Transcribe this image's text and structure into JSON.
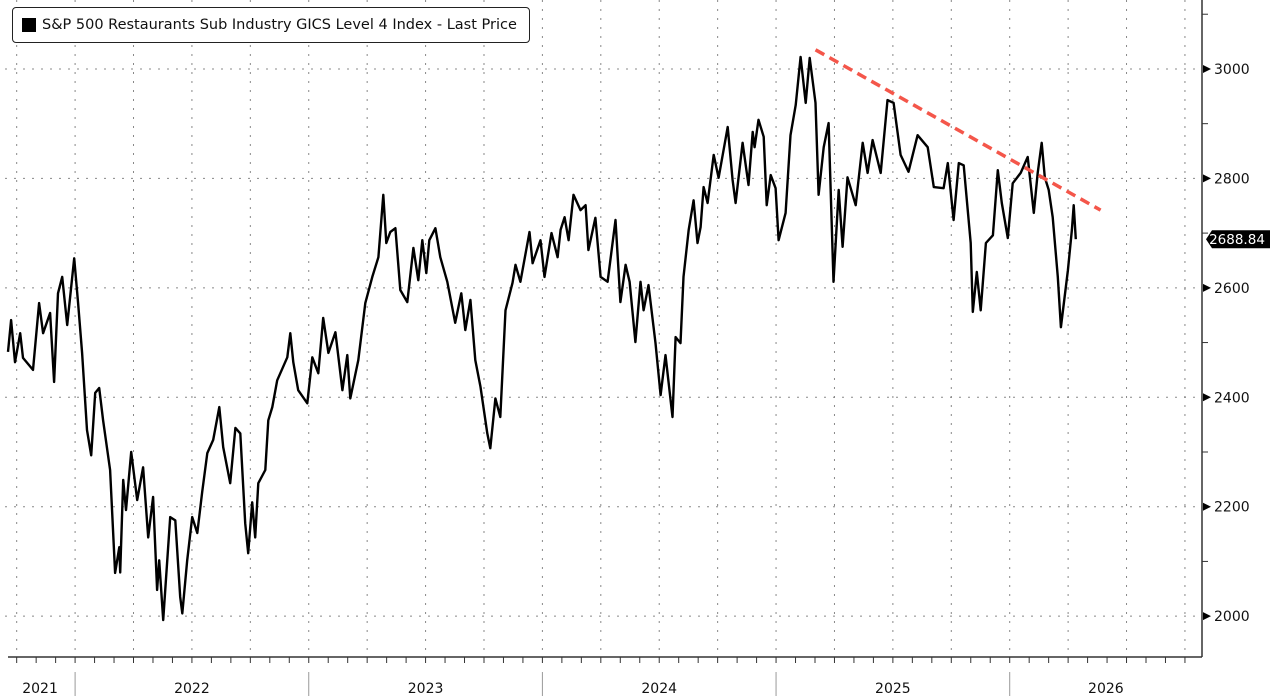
{
  "chart_data": {
    "type": "line",
    "title": "S&P 500 Restaurants Sub Industry GICS Level 4 Index - Last Price",
    "legend": [
      "S&P 500 Restaurants Sub Industry GICS Level 4 Index - Last Price"
    ],
    "legend_position": "top-left",
    "xlabel": "",
    "ylabel": "",
    "x_unit": "decimal year",
    "xlim": [
      2021.7,
      2026.823
    ],
    "ylim": [
      1929,
      3126
    ],
    "grid": true,
    "y_ticks": [
      2000,
      2200,
      2400,
      2600,
      2800,
      3000
    ],
    "y_tick_labels": [
      "2000",
      "2200",
      "2400",
      "2600",
      "2800",
      "3000"
    ],
    "x_tick_labels": [
      {
        "label": "2021",
        "from": 2021.7,
        "to": 2022.0
      },
      {
        "label": "2022",
        "from": 2022.0,
        "to": 2023.0
      },
      {
        "label": "2023",
        "from": 2023.0,
        "to": 2024.0
      },
      {
        "label": "2024",
        "from": 2024.0,
        "to": 2025.0
      },
      {
        "label": "2025",
        "from": 2025.0,
        "to": 2026.0
      },
      {
        "label": "2026",
        "from": 2026.0,
        "to": 2026.823
      }
    ],
    "last_price_label": "2688.84",
    "last_price": 2688.84,
    "series": [
      {
        "name": "S&P 500 Restaurants Sub Industry GICS Level 4 Index - Last Price",
        "color": "#000000",
        "points": [
          [
            2021.713,
            2483
          ],
          [
            2021.726,
            2541
          ],
          [
            2021.743,
            2464
          ],
          [
            2021.765,
            2517
          ],
          [
            2021.777,
            2472
          ],
          [
            2021.82,
            2450
          ],
          [
            2021.846,
            2572
          ],
          [
            2021.863,
            2517
          ],
          [
            2021.893,
            2554
          ],
          [
            2021.91,
            2428
          ],
          [
            2021.927,
            2590
          ],
          [
            2021.945,
            2620
          ],
          [
            2021.966,
            2532
          ],
          [
            2021.996,
            2654
          ],
          [
            2022.013,
            2572
          ],
          [
            2022.03,
            2481
          ],
          [
            2022.051,
            2340
          ],
          [
            2022.069,
            2294
          ],
          [
            2022.086,
            2408
          ],
          [
            2022.103,
            2417
          ],
          [
            2022.12,
            2358
          ],
          [
            2022.15,
            2267
          ],
          [
            2022.171,
            2079
          ],
          [
            2022.189,
            2126
          ],
          [
            2022.193,
            2080
          ],
          [
            2022.206,
            2249
          ],
          [
            2022.218,
            2194
          ],
          [
            2022.24,
            2300
          ],
          [
            2022.266,
            2212
          ],
          [
            2022.291,
            2272
          ],
          [
            2022.313,
            2144
          ],
          [
            2022.334,
            2218
          ],
          [
            2022.351,
            2048
          ],
          [
            2022.36,
            2102
          ],
          [
            2022.377,
            1993
          ],
          [
            2022.407,
            2181
          ],
          [
            2022.429,
            2175
          ],
          [
            2022.45,
            2035
          ],
          [
            2022.459,
            2005
          ],
          [
            2022.48,
            2102
          ],
          [
            2022.501,
            2181
          ],
          [
            2022.523,
            2152
          ],
          [
            2022.544,
            2227
          ],
          [
            2022.566,
            2298
          ],
          [
            2022.591,
            2322
          ],
          [
            2022.617,
            2382
          ],
          [
            2022.634,
            2309
          ],
          [
            2022.664,
            2243
          ],
          [
            2022.686,
            2344
          ],
          [
            2022.707,
            2334
          ],
          [
            2022.728,
            2170
          ],
          [
            2022.741,
            2115
          ],
          [
            2022.758,
            2208
          ],
          [
            2022.771,
            2144
          ],
          [
            2022.784,
            2243
          ],
          [
            2022.814,
            2267
          ],
          [
            2022.827,
            2358
          ],
          [
            2022.844,
            2382
          ],
          [
            2022.865,
            2431
          ],
          [
            2022.908,
            2473
          ],
          [
            2022.921,
            2517
          ],
          [
            2022.934,
            2464
          ],
          [
            2022.955,
            2413
          ],
          [
            2022.994,
            2389
          ],
          [
            2023.015,
            2473
          ],
          [
            2023.041,
            2444
          ],
          [
            2023.062,
            2545
          ],
          [
            2023.084,
            2481
          ],
          [
            2023.114,
            2519
          ],
          [
            2023.144,
            2413
          ],
          [
            2023.165,
            2477
          ],
          [
            2023.178,
            2398
          ],
          [
            2023.212,
            2468
          ],
          [
            2023.242,
            2572
          ],
          [
            2023.272,
            2620
          ],
          [
            2023.298,
            2656
          ],
          [
            2023.319,
            2770
          ],
          [
            2023.332,
            2682
          ],
          [
            2023.349,
            2702
          ],
          [
            2023.371,
            2709
          ],
          [
            2023.392,
            2596
          ],
          [
            2023.422,
            2574
          ],
          [
            2023.448,
            2673
          ],
          [
            2023.469,
            2614
          ],
          [
            2023.486,
            2687
          ],
          [
            2023.503,
            2627
          ],
          [
            2023.516,
            2687
          ],
          [
            2023.542,
            2709
          ],
          [
            2023.563,
            2656
          ],
          [
            2023.593,
            2611
          ],
          [
            2023.627,
            2536
          ],
          [
            2023.653,
            2590
          ],
          [
            2023.67,
            2523
          ],
          [
            2023.692,
            2578
          ],
          [
            2023.713,
            2468
          ],
          [
            2023.735,
            2419
          ],
          [
            2023.764,
            2334
          ],
          [
            2023.777,
            2307
          ],
          [
            2023.799,
            2398
          ],
          [
            2023.82,
            2364
          ],
          [
            2023.842,
            2559
          ],
          [
            2023.872,
            2609
          ],
          [
            2023.885,
            2642
          ],
          [
            2023.906,
            2611
          ],
          [
            2023.945,
            2702
          ],
          [
            2023.958,
            2645
          ],
          [
            2023.992,
            2687
          ],
          [
            2024.009,
            2620
          ],
          [
            2024.039,
            2700
          ],
          [
            2024.065,
            2656
          ],
          [
            2024.078,
            2706
          ],
          [
            2024.095,
            2729
          ],
          [
            2024.112,
            2687
          ],
          [
            2024.133,
            2770
          ],
          [
            2024.163,
            2742
          ],
          [
            2024.185,
            2751
          ],
          [
            2024.197,
            2669
          ],
          [
            2024.227,
            2728
          ],
          [
            2024.249,
            2620
          ],
          [
            2024.279,
            2611
          ],
          [
            2024.313,
            2724
          ],
          [
            2024.334,
            2574
          ],
          [
            2024.356,
            2642
          ],
          [
            2024.373,
            2611
          ],
          [
            2024.398,
            2501
          ],
          [
            2024.42,
            2611
          ],
          [
            2024.433,
            2559
          ],
          [
            2024.454,
            2605
          ],
          [
            2024.484,
            2499
          ],
          [
            2024.506,
            2404
          ],
          [
            2024.527,
            2477
          ],
          [
            2024.557,
            2364
          ],
          [
            2024.57,
            2510
          ],
          [
            2024.591,
            2499
          ],
          [
            2024.604,
            2620
          ],
          [
            2024.626,
            2706
          ],
          [
            2024.647,
            2760
          ],
          [
            2024.664,
            2682
          ],
          [
            2024.677,
            2711
          ],
          [
            2024.69,
            2784
          ],
          [
            2024.707,
            2755
          ],
          [
            2024.733,
            2843
          ],
          [
            2024.754,
            2801
          ],
          [
            2024.793,
            2894
          ],
          [
            2024.814,
            2797
          ],
          [
            2024.827,
            2755
          ],
          [
            2024.857,
            2865
          ],
          [
            2024.882,
            2788
          ],
          [
            2024.9,
            2885
          ],
          [
            2024.908,
            2857
          ],
          [
            2024.925,
            2907
          ],
          [
            2024.947,
            2876
          ],
          [
            2024.96,
            2751
          ],
          [
            2024.977,
            2806
          ],
          [
            2024.998,
            2782
          ],
          [
            2025.011,
            2687
          ],
          [
            2025.041,
            2737
          ],
          [
            2025.062,
            2879
          ],
          [
            2025.084,
            2934
          ],
          [
            2025.105,
            3022
          ],
          [
            2025.127,
            2938
          ],
          [
            2025.144,
            3020
          ],
          [
            2025.169,
            2938
          ],
          [
            2025.182,
            2770
          ],
          [
            2025.204,
            2857
          ],
          [
            2025.225,
            2901
          ],
          [
            2025.246,
            2611
          ],
          [
            2025.268,
            2779
          ],
          [
            2025.285,
            2675
          ],
          [
            2025.306,
            2802
          ],
          [
            2025.341,
            2751
          ],
          [
            2025.371,
            2865
          ],
          [
            2025.392,
            2810
          ],
          [
            2025.413,
            2870
          ],
          [
            2025.448,
            2810
          ],
          [
            2025.477,
            2943
          ],
          [
            2025.503,
            2938
          ],
          [
            2025.533,
            2843
          ],
          [
            2025.567,
            2812
          ],
          [
            2025.606,
            2879
          ],
          [
            2025.649,
            2857
          ],
          [
            2025.675,
            2784
          ],
          [
            2025.717,
            2782
          ],
          [
            2025.735,
            2828
          ],
          [
            2025.76,
            2724
          ],
          [
            2025.782,
            2828
          ],
          [
            2025.803,
            2824
          ],
          [
            2025.833,
            2682
          ],
          [
            2025.842,
            2556
          ],
          [
            2025.859,
            2629
          ],
          [
            2025.876,
            2559
          ],
          [
            2025.898,
            2682
          ],
          [
            2025.928,
            2696
          ],
          [
            2025.949,
            2815
          ],
          [
            2025.966,
            2755
          ],
          [
            2025.992,
            2691
          ],
          [
            2026.013,
            2791
          ],
          [
            2026.047,
            2810
          ],
          [
            2026.077,
            2839
          ],
          [
            2026.103,
            2737
          ],
          [
            2026.12,
            2810
          ],
          [
            2026.137,
            2865
          ],
          [
            2026.15,
            2802
          ],
          [
            2026.167,
            2779
          ],
          [
            2026.184,
            2729
          ],
          [
            2026.206,
            2620
          ],
          [
            2026.219,
            2528
          ],
          [
            2026.249,
            2632
          ],
          [
            2026.266,
            2706
          ],
          [
            2026.274,
            2751
          ],
          [
            2026.283,
            2688.84
          ]
        ]
      }
    ],
    "annotations": [
      {
        "type": "trendline",
        "style": "dashed",
        "color": "#f4564a",
        "from": [
          2025.169,
          3035
        ],
        "to": [
          2026.389,
          2742
        ]
      }
    ]
  }
}
